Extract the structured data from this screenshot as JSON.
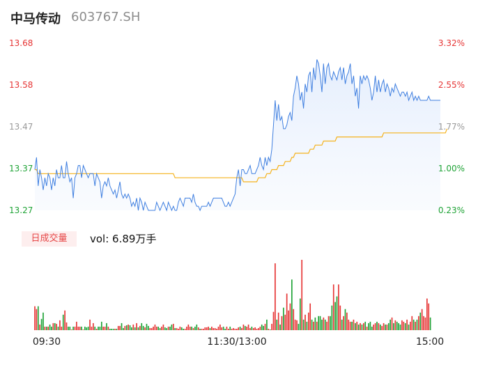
{
  "stock": {
    "name": "中马传动",
    "code": "603767.SH"
  },
  "volume_panel": {
    "tab_label": "日成交量",
    "vol_text": "vol: 6.89万手"
  },
  "colors": {
    "price_line": "#3f7fe0",
    "avg_line": "#f5b21c",
    "up": "#e63434",
    "down": "#1fa336",
    "flat": "#999999"
  },
  "chart_data": {
    "type": "line",
    "price_axis": {
      "labels": [
        "13.68",
        "13.58",
        "13.47",
        "13.37",
        "13.27"
      ],
      "ylim": [
        13.27,
        13.68
      ]
    },
    "pct_axis": {
      "labels": [
        "3.32%",
        "2.55%",
        "1.77%",
        "1.00%",
        "0.23%"
      ]
    },
    "x_ticks": [
      "09:30",
      "11:30/13:00",
      "15:00"
    ],
    "series": [
      {
        "name": "price",
        "values": [
          13.37,
          13.4,
          13.33,
          13.37,
          13.35,
          13.32,
          13.35,
          13.33,
          13.36,
          13.35,
          13.32,
          13.35,
          13.33,
          13.37,
          13.35,
          13.35,
          13.38,
          13.35,
          13.35,
          13.39,
          13.36,
          13.34,
          13.35,
          13.3,
          13.35,
          13.36,
          13.38,
          13.38,
          13.35,
          13.38,
          13.37,
          13.36,
          13.35,
          13.36,
          13.36,
          13.36,
          13.33,
          13.36,
          13.35,
          13.34,
          13.3,
          13.33,
          13.34,
          13.33,
          13.35,
          13.33,
          13.32,
          13.31,
          13.32,
          13.3,
          13.32,
          13.34,
          13.31,
          13.3,
          13.31,
          13.3,
          13.31,
          13.3,
          13.28,
          13.29,
          13.28,
          13.3,
          13.27,
          13.3,
          13.29,
          13.27,
          13.29,
          13.28,
          13.27,
          13.27,
          13.27,
          13.27,
          13.27,
          13.29,
          13.28,
          13.27,
          13.28,
          13.29,
          13.28,
          13.27,
          13.29,
          13.28,
          13.27,
          13.28,
          13.27,
          13.27,
          13.29,
          13.3,
          13.29,
          13.28,
          13.3,
          13.3,
          13.3,
          13.3,
          13.29,
          13.31,
          13.29,
          13.28,
          13.28,
          13.27,
          13.28,
          13.28,
          13.28,
          13.28,
          13.29,
          13.28,
          13.29,
          13.3,
          13.3,
          13.3,
          13.3,
          13.3,
          13.3,
          13.29,
          13.28,
          13.28,
          13.29,
          13.28,
          13.29,
          13.3,
          13.31,
          13.35,
          13.37,
          13.33,
          13.37,
          13.37,
          13.36,
          13.36,
          13.37,
          13.38,
          13.36,
          13.36,
          13.36,
          13.37,
          13.38,
          13.4,
          13.38,
          13.37,
          13.4,
          13.38,
          13.4,
          13.39,
          13.42,
          13.48,
          13.54,
          13.49,
          13.53,
          13.49,
          13.5,
          13.47,
          13.47,
          13.48,
          13.5,
          13.51,
          13.49,
          13.55,
          13.57,
          13.6,
          13.58,
          13.54,
          13.56,
          13.52,
          13.58,
          13.56,
          13.6,
          13.61,
          13.56,
          13.62,
          13.59,
          13.64,
          13.63,
          13.6,
          13.56,
          13.63,
          13.58,
          13.62,
          13.63,
          13.6,
          13.59,
          13.61,
          13.6,
          13.59,
          13.61,
          13.62,
          13.59,
          13.62,
          13.58,
          13.6,
          13.61,
          13.63,
          13.58,
          13.6,
          13.55,
          13.57,
          13.52,
          13.6,
          13.58,
          13.6,
          13.59,
          13.6,
          13.59,
          13.57,
          13.54,
          13.56,
          13.6,
          13.56,
          13.59,
          13.56,
          13.58,
          13.59,
          13.56,
          13.58,
          13.57,
          13.55,
          13.57,
          13.56,
          13.58,
          13.57,
          13.56,
          13.55,
          13.56,
          13.56,
          13.55,
          13.56,
          13.54,
          13.55,
          13.56,
          13.54,
          13.55,
          13.54,
          13.55,
          13.54,
          13.54,
          13.54,
          13.54,
          13.54,
          13.55,
          13.54,
          13.54,
          13.54,
          13.54,
          13.54,
          13.54,
          13.54
        ]
      },
      {
        "name": "avg",
        "values": [
          13.37,
          13.37,
          13.36,
          13.36,
          13.36,
          13.36,
          13.36,
          13.36,
          13.36,
          13.36,
          13.36,
          13.36,
          13.36,
          13.36,
          13.36,
          13.36,
          13.36,
          13.36,
          13.36,
          13.36,
          13.36,
          13.36,
          13.36,
          13.36,
          13.36,
          13.36,
          13.36,
          13.36,
          13.36,
          13.36,
          13.36,
          13.36,
          13.36,
          13.36,
          13.36,
          13.36,
          13.36,
          13.36,
          13.36,
          13.36,
          13.36,
          13.36,
          13.36,
          13.36,
          13.36,
          13.36,
          13.36,
          13.36,
          13.36,
          13.36,
          13.36,
          13.36,
          13.36,
          13.36,
          13.36,
          13.36,
          13.36,
          13.36,
          13.36,
          13.36,
          13.36,
          13.36,
          13.36,
          13.36,
          13.36,
          13.36,
          13.36,
          13.36,
          13.36,
          13.36,
          13.36,
          13.36,
          13.36,
          13.36,
          13.36,
          13.36,
          13.36,
          13.36,
          13.36,
          13.36,
          13.36,
          13.36,
          13.36,
          13.36,
          13.35,
          13.35,
          13.35,
          13.35,
          13.35,
          13.35,
          13.35,
          13.35,
          13.35,
          13.35,
          13.35,
          13.35,
          13.35,
          13.35,
          13.35,
          13.35,
          13.35,
          13.35,
          13.35,
          13.35,
          13.35,
          13.35,
          13.35,
          13.35,
          13.35,
          13.35,
          13.35,
          13.35,
          13.35,
          13.35,
          13.35,
          13.35,
          13.35,
          13.35,
          13.35,
          13.35,
          13.35,
          13.35,
          13.35,
          13.35,
          13.35,
          13.34,
          13.34,
          13.34,
          13.34,
          13.34,
          13.34,
          13.34,
          13.34,
          13.34,
          13.35,
          13.35,
          13.35,
          13.35,
          13.35,
          13.36,
          13.36,
          13.36,
          13.37,
          13.37,
          13.37,
          13.37,
          13.38,
          13.38,
          13.38,
          13.38,
          13.39,
          13.39,
          13.39,
          13.39,
          13.4,
          13.4,
          13.41,
          13.41,
          13.41,
          13.41,
          13.41,
          13.41,
          13.41,
          13.41,
          13.41,
          13.42,
          13.42,
          13.42,
          13.43,
          13.43,
          13.43,
          13.43,
          13.43,
          13.44,
          13.44,
          13.44,
          13.44,
          13.44,
          13.44,
          13.44,
          13.44,
          13.45,
          13.45,
          13.45,
          13.45,
          13.45,
          13.45,
          13.45,
          13.45,
          13.45,
          13.45,
          13.45,
          13.45,
          13.45,
          13.45,
          13.45,
          13.45,
          13.45,
          13.45,
          13.45,
          13.45,
          13.45,
          13.45,
          13.45,
          13.45,
          13.45,
          13.45,
          13.45,
          13.45,
          13.46,
          13.46,
          13.46,
          13.46,
          13.46,
          13.46,
          13.46,
          13.46,
          13.46,
          13.46,
          13.46,
          13.46,
          13.46,
          13.46,
          13.46,
          13.46,
          13.46,
          13.46,
          13.46,
          13.46,
          13.46,
          13.46,
          13.46,
          13.46,
          13.46,
          13.46,
          13.46,
          13.46,
          13.46,
          13.46,
          13.46,
          13.46,
          13.46,
          13.46,
          13.46,
          13.46,
          13.46,
          13.46,
          13.47
        ]
      },
      {
        "name": "volume",
        "values": [
          34,
          30,
          34,
          8,
          16,
          25,
          5,
          5,
          5,
          8,
          5,
          10,
          10,
          9,
          5,
          14,
          5,
          22,
          28,
          11,
          5,
          5,
          1,
          5,
          5,
          12,
          5,
          5,
          5,
          1,
          5,
          4,
          5,
          15,
          5,
          10,
          5,
          2,
          5,
          5,
          12,
          5,
          5,
          10,
          5,
          2,
          2,
          2,
          2,
          2,
          6,
          6,
          10,
          3,
          6,
          7,
          8,
          7,
          4,
          8,
          4,
          10,
          4,
          6,
          10,
          6,
          4,
          9,
          6,
          3,
          3,
          5,
          8,
          5,
          5,
          3,
          5,
          8,
          4,
          3,
          5,
          5,
          8,
          9,
          3,
          3,
          2,
          5,
          4,
          2,
          2,
          5,
          8,
          5,
          5,
          3,
          5,
          8,
          4,
          2,
          2,
          2,
          4,
          4,
          5,
          3,
          5,
          3,
          3,
          2,
          5,
          8,
          4,
          5,
          2,
          5,
          2,
          5,
          2,
          3,
          2,
          2,
          4,
          5,
          3,
          8,
          6,
          5,
          8,
          3,
          5,
          3,
          4,
          2,
          3,
          5,
          8,
          6,
          9,
          15,
          2,
          1,
          9,
          26,
          95,
          15,
          25,
          8,
          20,
          32,
          22,
          52,
          28,
          38,
          72,
          30,
          15,
          14,
          9,
          45,
          100,
          15,
          22,
          12,
          25,
          38,
          15,
          12,
          18,
          12,
          20,
          20,
          15,
          18,
          15,
          12,
          20,
          20,
          35,
          65,
          40,
          48,
          65,
          35,
          15,
          20,
          30,
          25,
          15,
          12,
          12,
          15,
          10,
          12,
          8,
          10,
          8,
          10,
          12,
          5,
          10,
          12,
          5,
          8,
          10,
          12,
          10,
          8,
          6,
          10,
          8,
          8,
          10,
          15,
          18,
          10,
          14,
          12,
          10,
          8,
          14,
          12,
          10,
          15,
          8,
          12,
          20,
          15,
          12,
          15,
          20,
          25,
          30,
          20,
          18,
          45,
          38,
          18
        ]
      }
    ]
  }
}
